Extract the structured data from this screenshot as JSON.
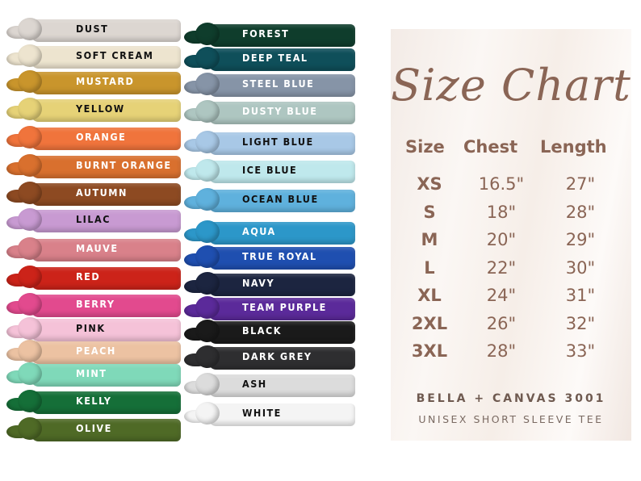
{
  "colors_left": [
    {
      "name": "DUST",
      "hex": "#dcd6d1",
      "text": "#111111"
    },
    {
      "name": "SOFT CREAM",
      "hex": "#ede4cf",
      "text": "#111111"
    },
    {
      "name": "MUSTARD",
      "hex": "#c9952c",
      "text": "#ffffff"
    },
    {
      "name": "YELLOW",
      "hex": "#e6d277",
      "text": "#111111"
    },
    {
      "name": "ORANGE",
      "hex": "#f0743c",
      "text": "#ffffff"
    },
    {
      "name": "BURNT ORANGE",
      "hex": "#d9702e",
      "text": "#ffffff"
    },
    {
      "name": "AUTUMN",
      "hex": "#8d4a22",
      "text": "#ffffff"
    },
    {
      "name": "LILAC",
      "hex": "#c89ad2",
      "text": "#111111"
    },
    {
      "name": "MAUVE",
      "hex": "#d9818a",
      "text": "#ffffff"
    },
    {
      "name": "RED",
      "hex": "#cc2319",
      "text": "#ffffff"
    },
    {
      "name": "BERRY",
      "hex": "#e24a8e",
      "text": "#ffffff"
    },
    {
      "name": "PINK",
      "hex": "#f5c2d8",
      "text": "#111111"
    },
    {
      "name": "PEACH",
      "hex": "#ecc2a2",
      "text": "#ffffff"
    },
    {
      "name": "MINT",
      "hex": "#7fd9b9",
      "text": "#ffffff"
    },
    {
      "name": "KELLY",
      "hex": "#156f38",
      "text": "#ffffff"
    },
    {
      "name": "OLIVE",
      "hex": "#4f6a26",
      "text": "#ffffff"
    }
  ],
  "colors_right": [
    {
      "name": "FOREST",
      "hex": "#0f3d2c",
      "text": "#ffffff"
    },
    {
      "name": "DEEP TEAL",
      "hex": "#0f4f5a",
      "text": "#ffffff"
    },
    {
      "name": "STEEL BLUE",
      "hex": "#8694a7",
      "text": "#ffffff"
    },
    {
      "name": "DUSTY BLUE",
      "hex": "#aec6c1",
      "text": "#ffffff"
    },
    {
      "name": "LIGHT BLUE",
      "hex": "#a8c8e6",
      "text": "#111111"
    },
    {
      "name": "ICE BLUE",
      "hex": "#bfe8ec",
      "text": "#111111"
    },
    {
      "name": "OCEAN BLUE",
      "hex": "#5fb1dd",
      "text": "#111111"
    },
    {
      "name": "AQUA",
      "hex": "#2c97c9",
      "text": "#ffffff"
    },
    {
      "name": "TRUE ROYAL",
      "hex": "#1f4fb0",
      "text": "#ffffff"
    },
    {
      "name": "NAVY",
      "hex": "#1c2540",
      "text": "#ffffff"
    },
    {
      "name": "TEAM PURPLE",
      "hex": "#5b2a9a",
      "text": "#ffffff"
    },
    {
      "name": "BLACK",
      "hex": "#1a1a1a",
      "text": "#ffffff"
    },
    {
      "name": "DARK GREY",
      "hex": "#2e2e30",
      "text": "#ffffff"
    },
    {
      "name": "ASH",
      "hex": "#dcdcdc",
      "text": "#111111"
    },
    {
      "name": "WHITE",
      "hex": "#f4f4f4",
      "text": "#111111"
    }
  ],
  "size_chart": {
    "title": "Size Chart",
    "headers": [
      "Size",
      "Chest",
      "Length"
    ],
    "rows": [
      [
        "XS",
        "16.5\"",
        "27\""
      ],
      [
        "S",
        "18\"",
        "28\""
      ],
      [
        "M",
        "20\"",
        "29\""
      ],
      [
        "L",
        "22\"",
        "30\""
      ],
      [
        "XL",
        "24\"",
        "31\""
      ],
      [
        "2XL",
        "26\"",
        "32\""
      ],
      [
        "3XL",
        "28\"",
        "33\""
      ]
    ],
    "brand": "BELLA + CANVAS 3001",
    "subtitle": "UNISEX SHORT SLEEVE TEE"
  }
}
